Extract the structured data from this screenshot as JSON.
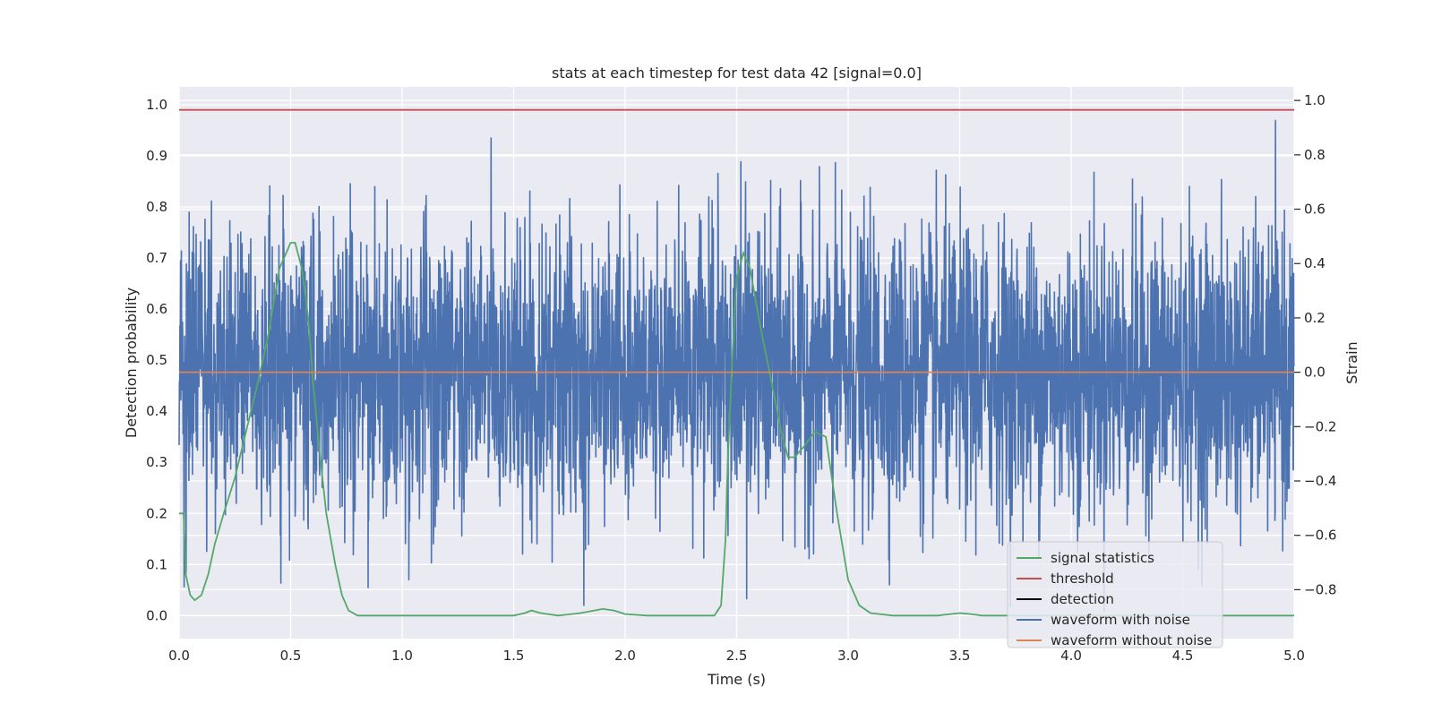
{
  "chart_data": {
    "type": "line",
    "title": "stats at each timestep for test data 42 [signal=0.0]",
    "xlabel": "Time (s)",
    "ylabel_left": "Detection probability",
    "ylabel_right": "Strain",
    "xlim": [
      0.0,
      5.0
    ],
    "ylim_left": [
      -0.045,
      1.035
    ],
    "ylim_right": [
      -0.98,
      1.05
    ],
    "xticks": [
      "0.0",
      "0.5",
      "1.0",
      "1.5",
      "2.0",
      "2.5",
      "3.0",
      "3.5",
      "4.0",
      "4.5",
      "5.0"
    ],
    "yticks_left": [
      "0.0",
      "0.1",
      "0.2",
      "0.3",
      "0.4",
      "0.5",
      "0.6",
      "0.7",
      "0.8",
      "0.9",
      "1.0"
    ],
    "yticks_right": [
      "−0.8",
      "−0.6",
      "−0.4",
      "−0.2",
      "0.0",
      "0.2",
      "0.4",
      "0.6",
      "0.8",
      "1.0"
    ],
    "grid": true,
    "legend_location": "lower-right",
    "series": [
      {
        "name": "signal statistics",
        "axis": "left",
        "color": "#55a868",
        "x": [
          0.0,
          0.02,
          0.03,
          0.05,
          0.07,
          0.1,
          0.13,
          0.16,
          0.2,
          0.25,
          0.3,
          0.35,
          0.4,
          0.45,
          0.5,
          0.52,
          0.55,
          0.58,
          0.6,
          0.63,
          0.66,
          0.7,
          0.73,
          0.76,
          0.8,
          0.9,
          1.0,
          1.2,
          1.5,
          1.55,
          1.58,
          1.62,
          1.7,
          1.8,
          1.9,
          1.95,
          2.0,
          2.1,
          2.2,
          2.3,
          2.4,
          2.43,
          2.45,
          2.46,
          2.48,
          2.5,
          2.53,
          2.56,
          2.6,
          2.65,
          2.7,
          2.73,
          2.76,
          2.8,
          2.85,
          2.9,
          2.95,
          3.0,
          3.05,
          3.1,
          3.2,
          3.4,
          3.5,
          3.55,
          3.6,
          3.8,
          4.0,
          4.5,
          5.0
        ],
        "y": [
          0.2,
          0.2,
          0.08,
          0.04,
          0.03,
          0.04,
          0.08,
          0.14,
          0.2,
          0.27,
          0.36,
          0.45,
          0.55,
          0.68,
          0.73,
          0.73,
          0.68,
          0.58,
          0.46,
          0.32,
          0.2,
          0.1,
          0.04,
          0.01,
          0.0,
          0.0,
          0.0,
          0.0,
          0.0,
          0.005,
          0.01,
          0.005,
          0.0,
          0.005,
          0.013,
          0.01,
          0.003,
          0.0,
          0.0,
          0.0,
          0.0,
          0.02,
          0.15,
          0.3,
          0.5,
          0.66,
          0.71,
          0.68,
          0.58,
          0.47,
          0.36,
          0.31,
          0.31,
          0.33,
          0.36,
          0.35,
          0.2,
          0.07,
          0.02,
          0.005,
          0.0,
          0.0,
          0.005,
          0.003,
          0.0,
          0.0,
          0.0,
          0.0,
          0.0
        ]
      },
      {
        "name": "threshold",
        "axis": "left",
        "color": "#c44e52",
        "x": [
          0.0,
          5.0
        ],
        "y": [
          0.99,
          0.99
        ]
      },
      {
        "name": "detection",
        "axis": "left",
        "color": "#000000",
        "x": [],
        "y": []
      },
      {
        "name": "waveform with noise",
        "axis": "right",
        "color": "#4c72b0",
        "x_range": [
          0.0,
          5.0
        ],
        "amplitude_range": [
          -0.88,
          0.99
        ],
        "description_value": "dense noise trace, mostly within -0.6 to 0.7 strain"
      },
      {
        "name": "waveform without noise",
        "axis": "right",
        "color": "#dd8452",
        "x": [
          0.0,
          5.0
        ],
        "y": [
          0.0,
          0.0
        ]
      }
    ]
  }
}
